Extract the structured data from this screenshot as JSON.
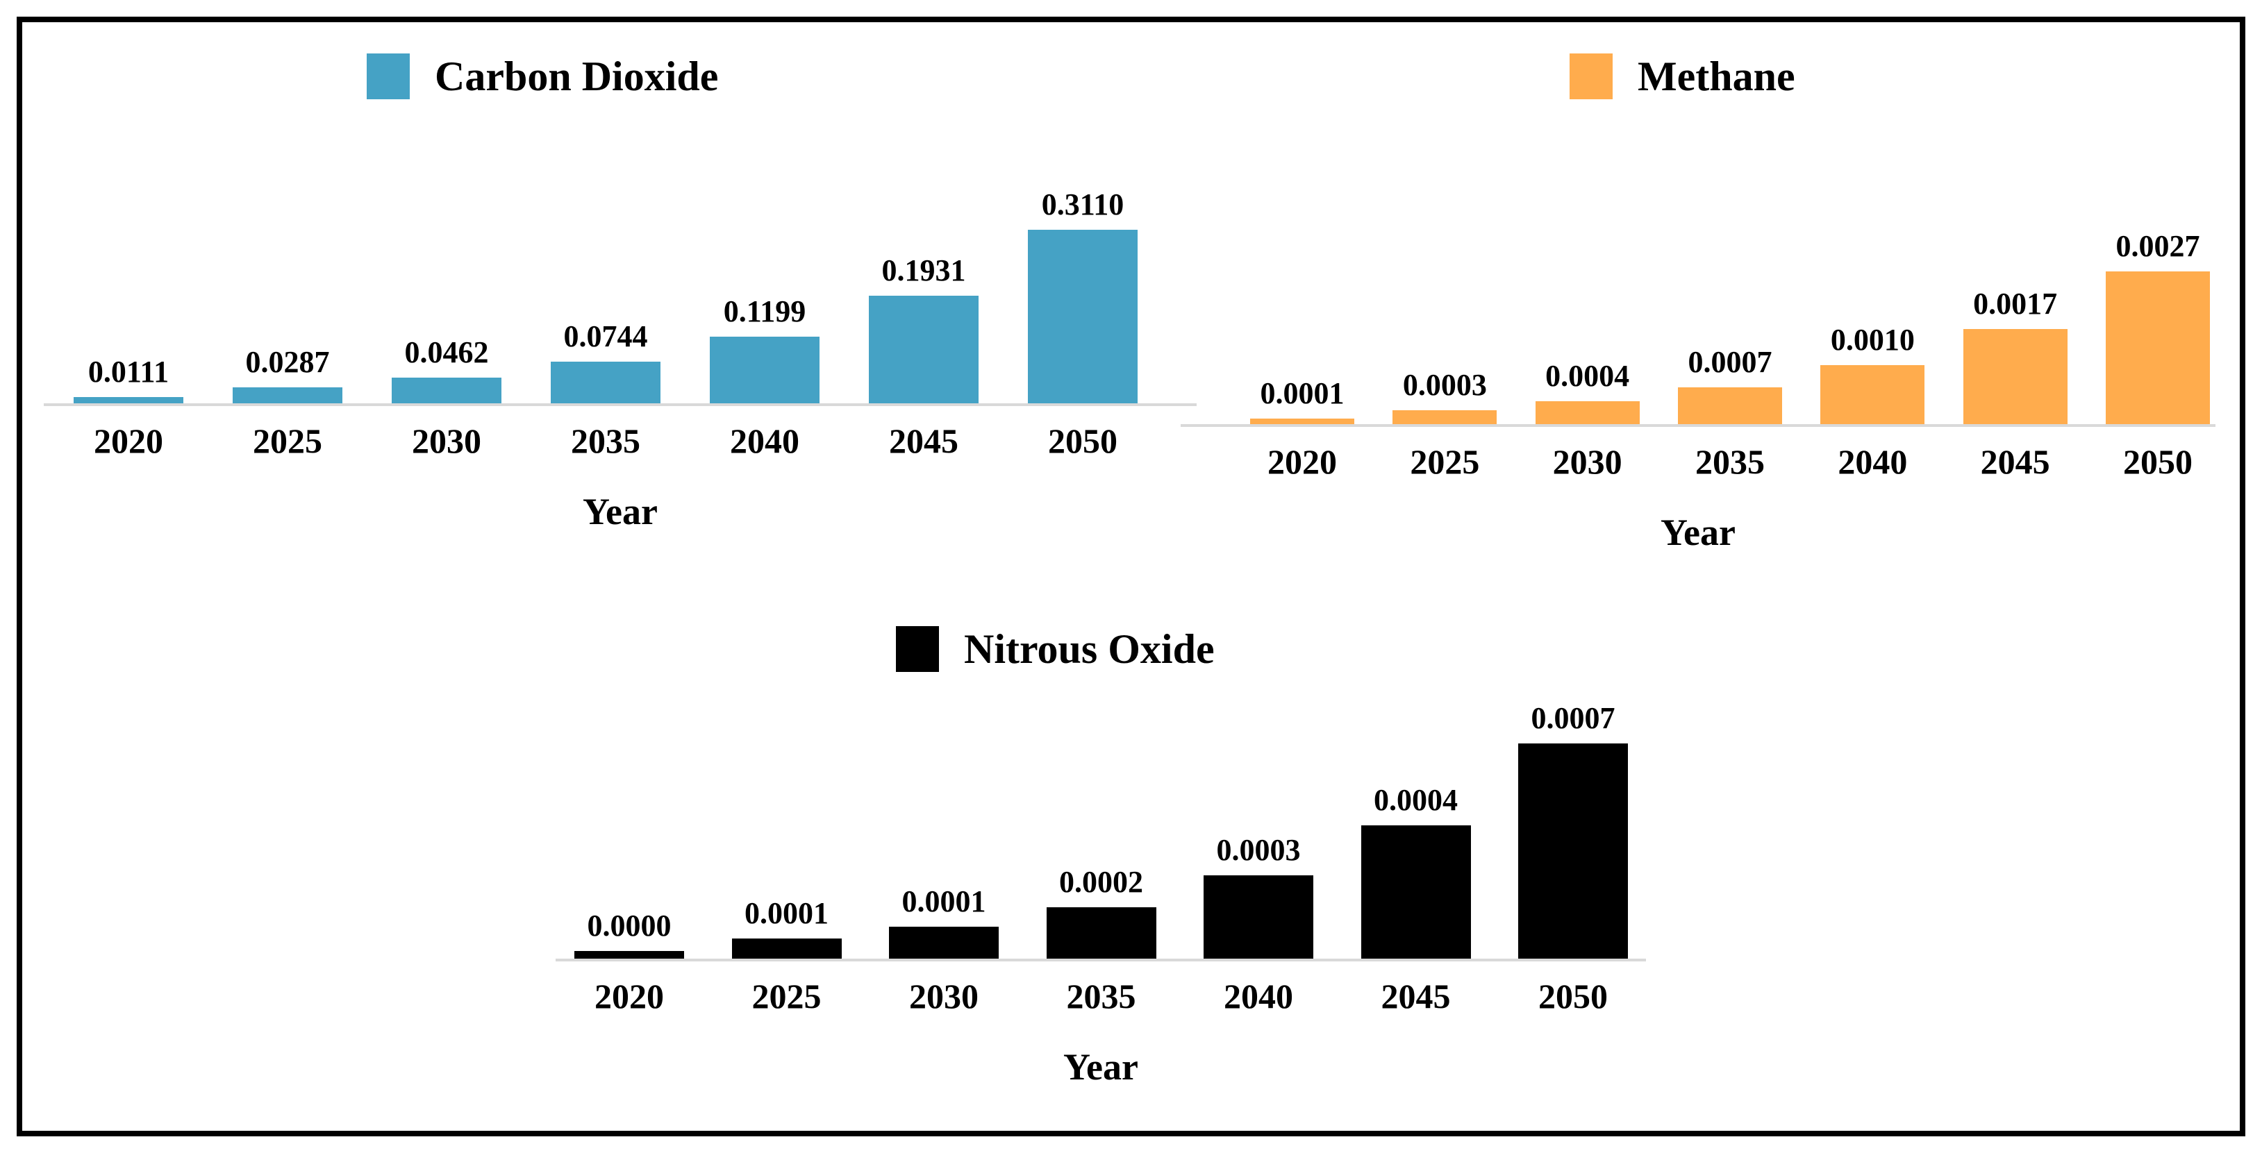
{
  "figure": {
    "background": "#FFFFFF",
    "frame_border_color": "#000000"
  },
  "chart_data": [
    {
      "id": "co2",
      "type": "bar",
      "title": "Carbon Dioxide",
      "xlabel": "Year",
      "color": "#45A2C5",
      "categories": [
        "2020",
        "2025",
        "2030",
        "2035",
        "2040",
        "2045",
        "2050"
      ],
      "values": [
        0.0111,
        0.0287,
        0.0462,
        0.0744,
        0.1199,
        0.1931,
        0.311
      ],
      "value_labels": [
        "0.0111",
        "0.0287",
        "0.0462",
        "0.0744",
        "0.1199",
        "0.1931",
        "0.3110"
      ],
      "bar_heights_pct_of_max": [
        3.6,
        9.2,
        14.9,
        23.9,
        38.6,
        62.1,
        100
      ],
      "baseline_color": "#D9D9D9",
      "legend_position": "top",
      "gridlines": false,
      "y_axis_visible": false
    },
    {
      "id": "ch4",
      "type": "bar",
      "title": "Methane",
      "xlabel": "Year",
      "color": "#FFAC4D",
      "categories": [
        "2020",
        "2025",
        "2030",
        "2035",
        "2040",
        "2045",
        "2050"
      ],
      "values": [
        0.0001,
        0.0003,
        0.0004,
        0.0007,
        0.001,
        0.0017,
        0.0027
      ],
      "value_labels": [
        "0.0001",
        "0.0003",
        "0.0004",
        "0.0007",
        "0.0010",
        "0.0017",
        "0.0027"
      ],
      "bar_heights_pct_of_max": [
        3.6,
        9.2,
        14.9,
        23.9,
        38.6,
        62.1,
        100
      ],
      "baseline_color": "#D9D9D9",
      "legend_position": "top",
      "gridlines": false,
      "y_axis_visible": false
    },
    {
      "id": "n2o",
      "type": "bar",
      "title": "Nitrous Oxide",
      "xlabel": "Year",
      "color": "#000000",
      "categories": [
        "2020",
        "2025",
        "2030",
        "2035",
        "2040",
        "2045",
        "2050"
      ],
      "values": [
        0.0,
        0.0001,
        0.0001,
        0.0002,
        0.0003,
        0.0004,
        0.0007
      ],
      "value_labels": [
        "0.0000",
        "0.0001",
        "0.0001",
        "0.0002",
        "0.0003",
        "0.0004",
        "0.0007"
      ],
      "bar_heights_pct_of_max": [
        3.6,
        9.2,
        14.9,
        23.9,
        38.6,
        62.1,
        100
      ],
      "baseline_color": "#D9D9D9",
      "legend_position": "top",
      "gridlines": false,
      "y_axis_visible": false
    }
  ]
}
